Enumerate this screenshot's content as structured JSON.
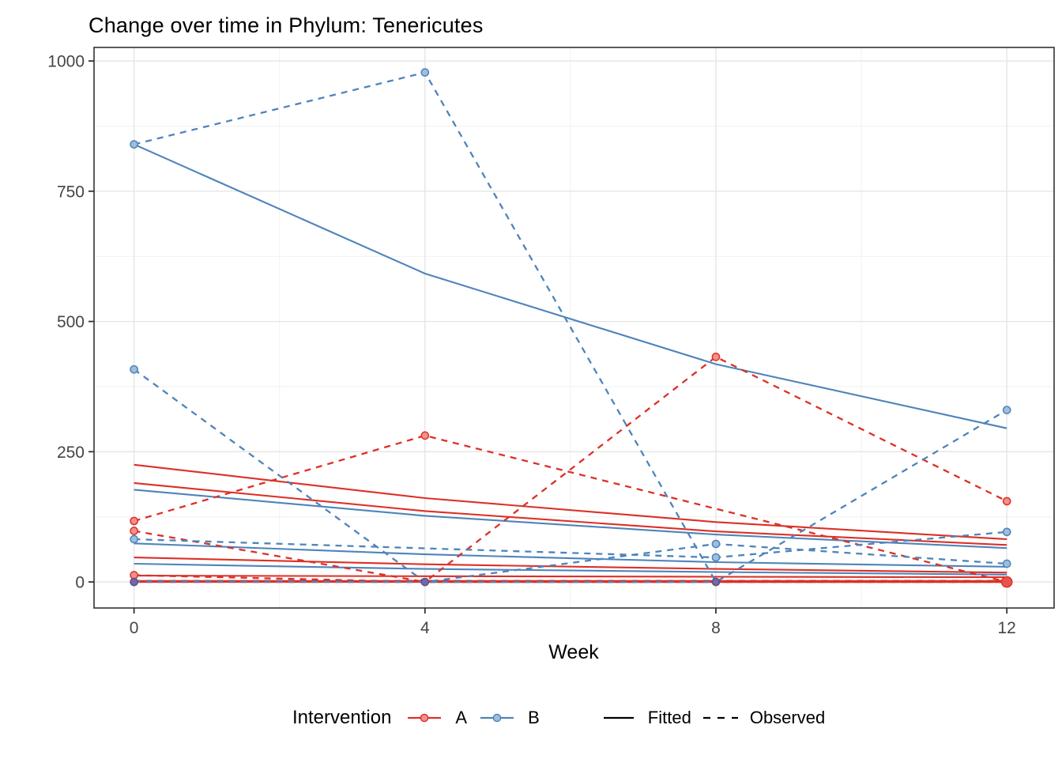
{
  "chart_data": {
    "type": "line",
    "title": "Change over time in Phylum: Tenericutes",
    "xlabel": "Week",
    "ylabel": "",
    "x_ticks": [
      0,
      4,
      8,
      12
    ],
    "x_minor": [
      2,
      6,
      10
    ],
    "y_ticks": [
      0,
      250,
      500,
      750,
      1000
    ],
    "y_minor": [
      125,
      375,
      625,
      875
    ],
    "x_domain": [
      -0.55,
      12.65
    ],
    "y_domain": [
      -50,
      1026
    ],
    "grid": true,
    "weeks": [
      0,
      4,
      8,
      12
    ],
    "legend": {
      "title": "Intervention",
      "groups": [
        {
          "id": "A",
          "label": "A"
        },
        {
          "id": "B",
          "label": "B"
        }
      ],
      "linetypes": [
        {
          "id": "fitted",
          "label": "Fitted",
          "style": "solid"
        },
        {
          "id": "observed",
          "label": "Observed",
          "style": "dashed"
        }
      ],
      "position": "bottom"
    },
    "series": [
      {
        "id": "A1",
        "group": "A",
        "observed": [
          117,
          281,
          null,
          0
        ],
        "fitted": [
          225,
          161,
          115,
          82
        ]
      },
      {
        "id": "A2",
        "group": "A",
        "observed": [
          13,
          0,
          432,
          155
        ],
        "fitted": [
          190,
          136,
          97,
          71
        ]
      },
      {
        "id": "A3",
        "group": "A",
        "observed": [
          98,
          0,
          0,
          0
        ],
        "fitted": [
          47,
          34,
          25,
          18
        ]
      },
      {
        "id": "A4",
        "group": "A",
        "observed": [
          2,
          2,
          2,
          2
        ],
        "fitted": [
          12,
          11,
          10,
          9
        ]
      },
      {
        "id": "A5",
        "group": "A",
        "observed": [
          0,
          0,
          0,
          0
        ],
        "fitted": [
          1,
          1,
          1,
          1
        ],
        "emphasis": true
      },
      {
        "id": "B1",
        "group": "B",
        "observed": [
          840,
          978,
          0,
          330
        ],
        "fitted": [
          840,
          592,
          418,
          295
        ]
      },
      {
        "id": "B2",
        "group": "B",
        "observed": [
          408,
          0,
          73,
          35
        ],
        "fitted": [
          177,
          127,
          91,
          65
        ]
      },
      {
        "id": "B3",
        "group": "B",
        "observed": [
          82,
          null,
          47,
          96
        ],
        "fitted": [
          74,
          53,
          38,
          29
        ]
      },
      {
        "id": "B4",
        "group": "B",
        "observed": [
          1,
          0,
          0,
          null
        ],
        "fitted": [
          35,
          25,
          19,
          14
        ]
      }
    ],
    "points": [
      {
        "week": 0,
        "value": 840,
        "group": "B"
      },
      {
        "week": 0,
        "value": 408,
        "group": "B"
      },
      {
        "week": 0,
        "value": 117,
        "group": "A"
      },
      {
        "week": 0,
        "value": 98,
        "group": "A"
      },
      {
        "week": 0,
        "value": 82,
        "group": "B"
      },
      {
        "week": 0,
        "value": 13,
        "group": "A"
      },
      {
        "week": 0,
        "value": 0,
        "group": "AB"
      },
      {
        "week": 4,
        "value": 978,
        "group": "B"
      },
      {
        "week": 4,
        "value": 281,
        "group": "A"
      },
      {
        "week": 4,
        "value": 0,
        "group": "AB"
      },
      {
        "week": 8,
        "value": 432,
        "group": "A"
      },
      {
        "week": 8,
        "value": 73,
        "group": "B"
      },
      {
        "week": 8,
        "value": 47,
        "group": "B"
      },
      {
        "week": 8,
        "value": 0,
        "group": "AB"
      },
      {
        "week": 12,
        "value": 330,
        "group": "B"
      },
      {
        "week": 12,
        "value": 155,
        "group": "A"
      },
      {
        "week": 12,
        "value": 96,
        "group": "B"
      },
      {
        "week": 12,
        "value": 35,
        "group": "B"
      },
      {
        "week": 12,
        "value": 0,
        "group": "A",
        "size": "large"
      }
    ],
    "colors": {
      "A": "#DC3027",
      "A_point_fill": "#F0918A",
      "B": "#4E84BA",
      "B_point_fill": "#9DBEDC",
      "overlap_fill": "#7668A0",
      "overlap_stroke": "#5D4F8C",
      "grid_major": "#E4E4E4",
      "grid_minor": "#F1F1F1",
      "axis_text": "#454545",
      "panel_border": "#333333",
      "key_line": "#000000"
    }
  }
}
